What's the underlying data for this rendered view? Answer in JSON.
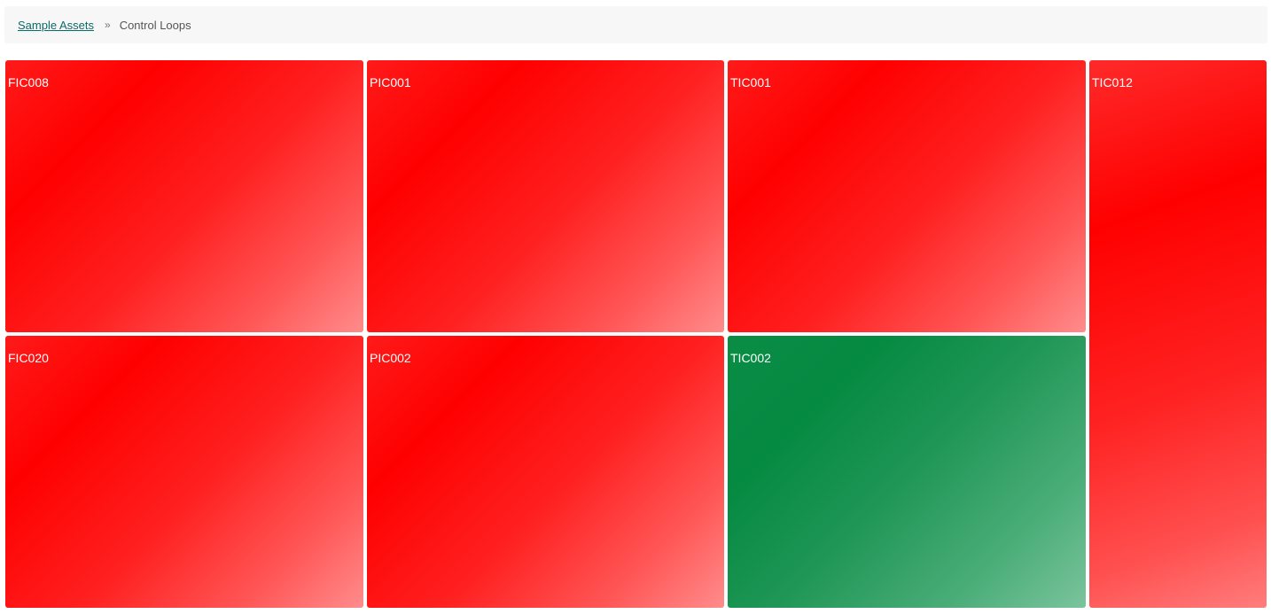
{
  "breadcrumb": {
    "parent": "Sample Assets",
    "separator": "»",
    "current": "Control Loops"
  },
  "colors": {
    "bad": "#ff0000",
    "good": "#058a42",
    "link": "#0b6b68"
  },
  "tiles": [
    {
      "label": "FIC008",
      "status": "bad"
    },
    {
      "label": "PIC001",
      "status": "bad"
    },
    {
      "label": "TIC001",
      "status": "bad"
    },
    {
      "label": "TIC012",
      "status": "bad"
    },
    {
      "label": "FIC020",
      "status": "bad"
    },
    {
      "label": "PIC002",
      "status": "bad"
    },
    {
      "label": "TIC002",
      "status": "good"
    }
  ]
}
